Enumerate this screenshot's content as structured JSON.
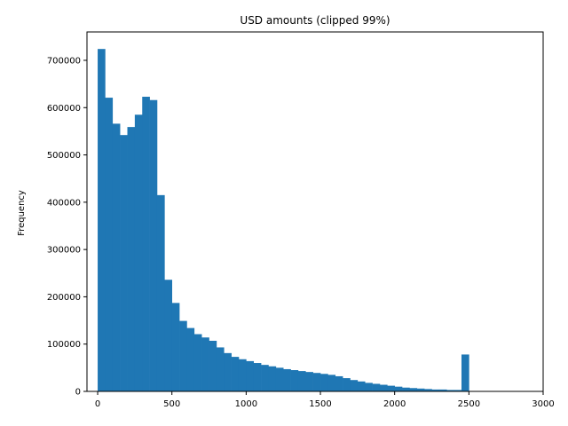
{
  "chart_data": {
    "type": "bar",
    "title": "USD amounts (clipped 99%)",
    "xlabel": "",
    "ylabel": "Frequency",
    "xlim": [
      -72,
      3000
    ],
    "ylim": [
      0,
      760000
    ],
    "xticks": [
      0,
      500,
      1000,
      1500,
      2000,
      2500,
      3000
    ],
    "yticks": [
      0,
      100000,
      200000,
      300000,
      400000,
      500000,
      600000,
      700000
    ],
    "bin_width": 50,
    "bin_start": 0,
    "grid": false,
    "legend": "none",
    "bar_color": "#1f77b4",
    "values": [
      724000,
      621000,
      566000,
      542000,
      559000,
      585000,
      623000,
      616000,
      415000,
      236000,
      187000,
      149000,
      134000,
      121000,
      114000,
      107000,
      93000,
      81000,
      73000,
      68000,
      64000,
      60000,
      56000,
      53000,
      50000,
      47000,
      45000,
      43000,
      41000,
      39000,
      37000,
      35000,
      32000,
      28000,
      24000,
      21000,
      18000,
      16000,
      14000,
      12000,
      10000,
      8000,
      7000,
      6000,
      5000,
      4000,
      4000,
      3000,
      3000,
      78000
    ]
  }
}
